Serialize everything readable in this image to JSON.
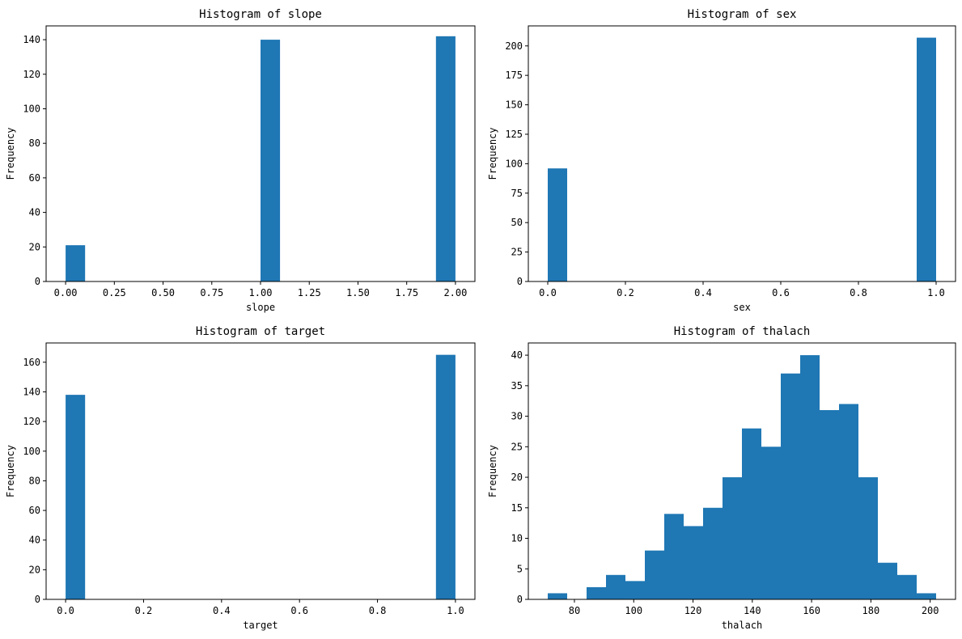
{
  "chart_data": [
    {
      "type": "bar",
      "title": "Histogram of slope",
      "xlabel": "slope",
      "ylabel": "Frequency",
      "bar_color": "#1f77b4",
      "bins": [
        {
          "x0": 0.0,
          "x1": 0.1,
          "count": 21
        },
        {
          "x0": 1.0,
          "x1": 1.1,
          "count": 140
        },
        {
          "x0": 1.9,
          "x1": 2.0,
          "count": 142
        }
      ],
      "xlim": [
        -0.1,
        2.1
      ],
      "ylim": [
        0,
        148
      ],
      "xticks": [
        0.0,
        0.25,
        0.5,
        0.75,
        1.0,
        1.25,
        1.5,
        1.75,
        2.0
      ],
      "xtick_labels": [
        "0.00",
        "0.25",
        "0.50",
        "0.75",
        "1.00",
        "1.25",
        "1.50",
        "1.75",
        "2.00"
      ],
      "yticks": [
        0,
        20,
        40,
        60,
        80,
        100,
        120,
        140
      ],
      "ytick_labels": [
        "0",
        "20",
        "40",
        "60",
        "80",
        "100",
        "120",
        "140"
      ]
    },
    {
      "type": "bar",
      "title": "Histogram of sex",
      "xlabel": "sex",
      "ylabel": "Frequency",
      "bar_color": "#1f77b4",
      "bins": [
        {
          "x0": 0.0,
          "x1": 0.05,
          "count": 96
        },
        {
          "x0": 0.95,
          "x1": 1.0,
          "count": 207
        }
      ],
      "xlim": [
        -0.05,
        1.05
      ],
      "ylim": [
        0,
        217
      ],
      "xticks": [
        0.0,
        0.2,
        0.4,
        0.6,
        0.8,
        1.0
      ],
      "xtick_labels": [
        "0.0",
        "0.2",
        "0.4",
        "0.6",
        "0.8",
        "1.0"
      ],
      "yticks": [
        0,
        25,
        50,
        75,
        100,
        125,
        150,
        175,
        200
      ],
      "ytick_labels": [
        "0",
        "25",
        "50",
        "75",
        "100",
        "125",
        "150",
        "175",
        "200"
      ]
    },
    {
      "type": "bar",
      "title": "Histogram of target",
      "xlabel": "target",
      "ylabel": "Frequency",
      "bar_color": "#1f77b4",
      "bins": [
        {
          "x0": 0.0,
          "x1": 0.05,
          "count": 138
        },
        {
          "x0": 0.95,
          "x1": 1.0,
          "count": 165
        }
      ],
      "xlim": [
        -0.05,
        1.05
      ],
      "ylim": [
        0,
        173
      ],
      "xticks": [
        0.0,
        0.2,
        0.4,
        0.6,
        0.8,
        1.0
      ],
      "xtick_labels": [
        "0.0",
        "0.2",
        "0.4",
        "0.6",
        "0.8",
        "1.0"
      ],
      "yticks": [
        0,
        20,
        40,
        60,
        80,
        100,
        120,
        140,
        160
      ],
      "ytick_labels": [
        "0",
        "20",
        "40",
        "60",
        "80",
        "100",
        "120",
        "140",
        "160"
      ]
    },
    {
      "type": "bar",
      "title": "Histogram of thalach",
      "xlabel": "thalach",
      "ylabel": "Frequency",
      "bar_color": "#1f77b4",
      "bins": [
        {
          "x0": 71.0,
          "x1": 77.55,
          "count": 1
        },
        {
          "x0": 77.55,
          "x1": 84.1,
          "count": 0
        },
        {
          "x0": 84.1,
          "x1": 90.65,
          "count": 2
        },
        {
          "x0": 90.65,
          "x1": 97.2,
          "count": 4
        },
        {
          "x0": 97.2,
          "x1": 103.75,
          "count": 3
        },
        {
          "x0": 103.75,
          "x1": 110.3,
          "count": 8
        },
        {
          "x0": 110.3,
          "x1": 116.85,
          "count": 14
        },
        {
          "x0": 116.85,
          "x1": 123.4,
          "count": 12
        },
        {
          "x0": 123.4,
          "x1": 129.95,
          "count": 15
        },
        {
          "x0": 129.95,
          "x1": 136.5,
          "count": 20
        },
        {
          "x0": 136.5,
          "x1": 143.05,
          "count": 28
        },
        {
          "x0": 143.05,
          "x1": 149.6,
          "count": 25
        },
        {
          "x0": 149.6,
          "x1": 156.15,
          "count": 37
        },
        {
          "x0": 156.15,
          "x1": 162.7,
          "count": 40
        },
        {
          "x0": 162.7,
          "x1": 169.25,
          "count": 31
        },
        {
          "x0": 169.25,
          "x1": 175.8,
          "count": 32
        },
        {
          "x0": 175.8,
          "x1": 182.35,
          "count": 20
        },
        {
          "x0": 182.35,
          "x1": 188.9,
          "count": 6
        },
        {
          "x0": 188.9,
          "x1": 195.45,
          "count": 4
        },
        {
          "x0": 195.45,
          "x1": 202.0,
          "count": 1
        }
      ],
      "xlim": [
        64.45,
        208.55
      ],
      "ylim": [
        0,
        42
      ],
      "xticks": [
        80,
        100,
        120,
        140,
        160,
        180,
        200
      ],
      "xtick_labels": [
        "80",
        "100",
        "120",
        "140",
        "160",
        "180",
        "200"
      ],
      "yticks": [
        0,
        5,
        10,
        15,
        20,
        25,
        30,
        35,
        40
      ],
      "ytick_labels": [
        "0",
        "5",
        "10",
        "15",
        "20",
        "25",
        "30",
        "35",
        "40"
      ]
    }
  ]
}
